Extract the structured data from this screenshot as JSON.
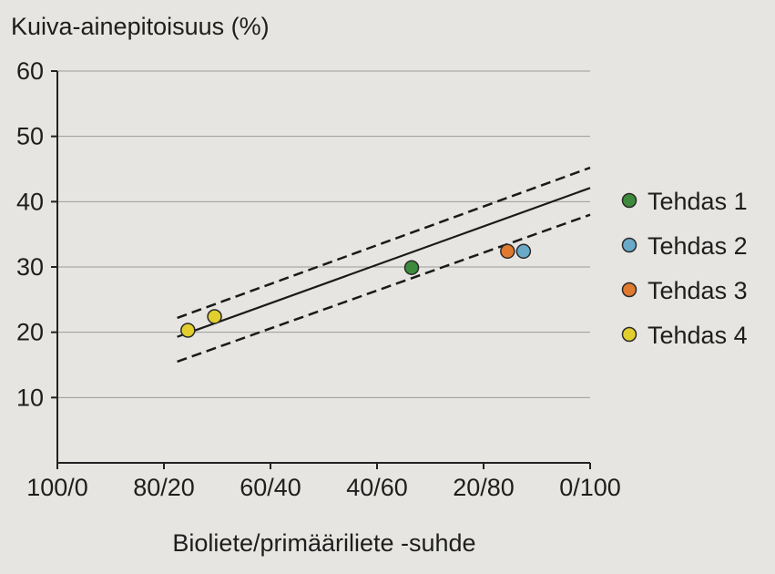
{
  "chart_data": {
    "type": "scatter",
    "title": "",
    "ylabel": "Kuiva-ainepitoisuus (%)",
    "xlabel": "Bioliete/primääriliete -suhde",
    "xlim": [
      0,
      100
    ],
    "ylim": [
      0,
      60
    ],
    "x_ticks": [
      0,
      20,
      40,
      60,
      80,
      100
    ],
    "x_tick_labels": [
      "100/0",
      "80/20",
      "60/40",
      "40/60",
      "20/80",
      "0/100"
    ],
    "y_ticks": [
      10,
      20,
      30,
      40,
      50,
      60
    ],
    "y_tick_labels": [
      "10",
      "20",
      "30",
      "40",
      "50",
      "60"
    ],
    "grid": "horizontal",
    "legend_position": "right",
    "series": [
      {
        "name": "Tehdas 1",
        "color": "#3e8a3c",
        "points": [
          [
            66.5,
            29.9
          ]
        ]
      },
      {
        "name": "Tehdas 2",
        "color": "#6ba9c9",
        "points": [
          [
            87.5,
            32.4
          ]
        ]
      },
      {
        "name": "Tehdas 3",
        "color": "#e07a30",
        "points": [
          [
            84.5,
            32.4
          ]
        ]
      },
      {
        "name": "Tehdas 4",
        "color": "#e2cf2e",
        "points": [
          [
            24.5,
            20.3
          ],
          [
            29.5,
            22.4
          ]
        ]
      }
    ],
    "lines": [
      {
        "style": "solid",
        "x": [
          22.5,
          100
        ],
        "y": [
          19.3,
          42.1
        ]
      },
      {
        "style": "dashed",
        "x": [
          22.5,
          100
        ],
        "y": [
          22.2,
          45.2
        ]
      },
      {
        "style": "dashed",
        "x": [
          22.5,
          100
        ],
        "y": [
          15.5,
          38.0
        ]
      }
    ]
  }
}
